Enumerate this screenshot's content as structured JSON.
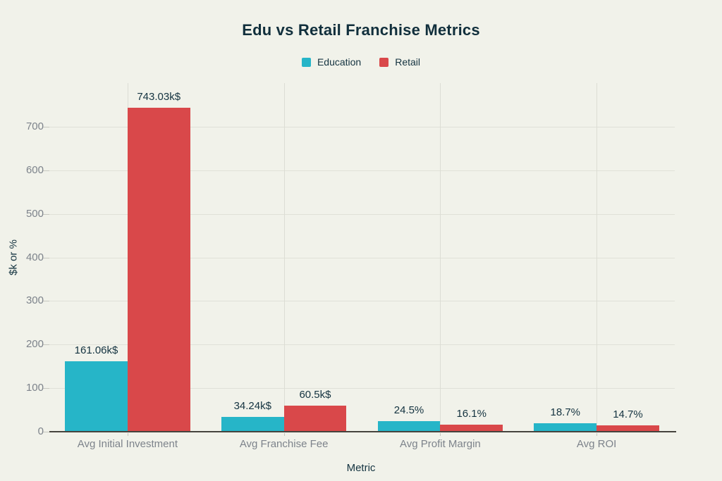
{
  "title": "Edu vs Retail Franchise Metrics",
  "colors": {
    "background": "#f1f2ea",
    "education": "#26b5c8",
    "retail": "#d9484a",
    "dark_text": "#143340",
    "gray_text": "#7d838b",
    "axis_line": "#46443e",
    "gridline": "#e0e1d8"
  },
  "legend": [
    {
      "label": "Education",
      "color_key": "education"
    },
    {
      "label": "Retail",
      "color_key": "retail"
    }
  ],
  "chart_data": {
    "type": "bar",
    "title": "Edu vs Retail Franchise Metrics",
    "xlabel": "Metric",
    "ylabel": "$k or %",
    "categories": [
      "Avg Initial Investment",
      "Avg Franchise Fee",
      "Avg Profit Margin",
      "Avg ROI"
    ],
    "series": [
      {
        "name": "Education",
        "color_key": "education",
        "values": [
          161.06,
          34.24,
          24.5,
          18.7
        ],
        "labels": [
          "161.06k$",
          "34.24k$",
          "24.5%",
          "18.7%"
        ]
      },
      {
        "name": "Retail",
        "color_key": "retail",
        "values": [
          743.03,
          60.5,
          16.1,
          14.7
        ],
        "labels": [
          "743.03k$",
          "60.5k$",
          "16.1%",
          "14.7%"
        ]
      }
    ],
    "ylim": [
      0,
      800
    ],
    "yticks": [
      0,
      100,
      200,
      300,
      400,
      500,
      600,
      700
    ],
    "grid": true,
    "legend_position": "top"
  }
}
